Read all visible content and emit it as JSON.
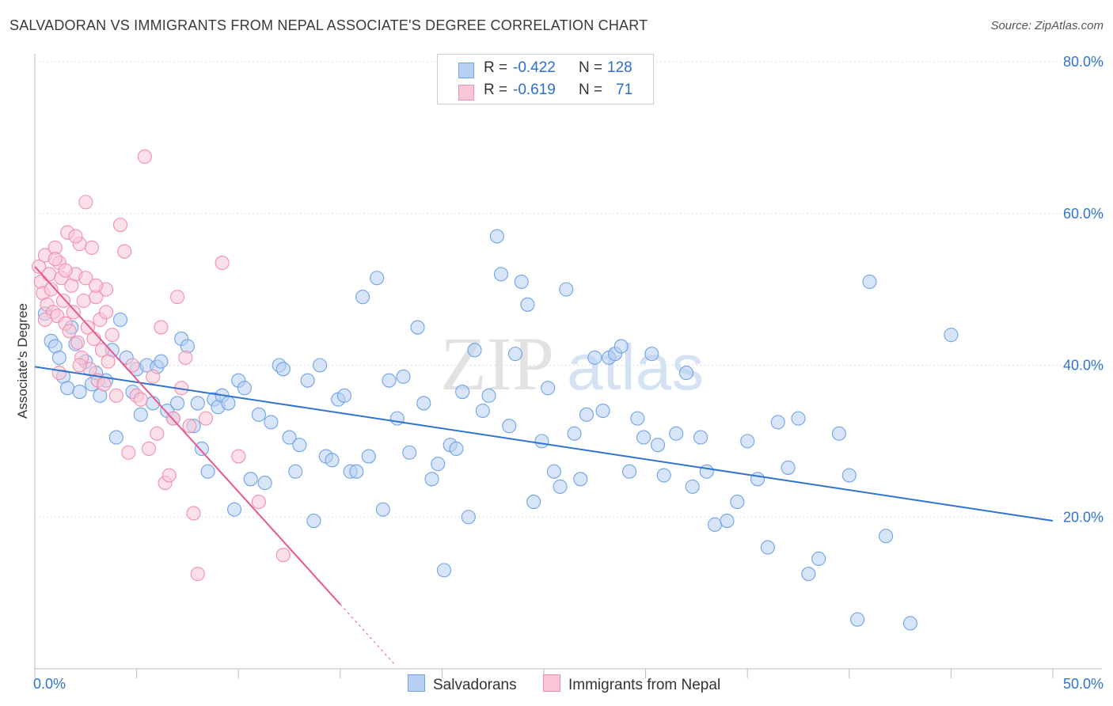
{
  "title": "SALVADORAN VS IMMIGRANTS FROM NEPAL ASSOCIATE'S DEGREE CORRELATION CHART",
  "source": "Source: ZipAtlas.com",
  "watermark": {
    "zip": "ZIP",
    "atlas": "atlas"
  },
  "legend": {
    "r_label": "R =",
    "n_label": "N =",
    "rows": [
      {
        "r": "-0.422",
        "n": "128",
        "color": "#6fa3e8",
        "fill": "#b8d0f3"
      },
      {
        "r": "-0.619",
        "n": "71",
        "color": "#f08fb0",
        "fill": "#f9c6d6"
      }
    ]
  },
  "bottom_legend": [
    "Salvadorans",
    "Immigrants from Nepal"
  ],
  "chart_data": {
    "type": "scatter",
    "title": "SALVADORAN VS IMMIGRANTS FROM NEPAL ASSOCIATE'S DEGREE CORRELATION CHART",
    "xlabel": "",
    "ylabel": "Associate's Degree",
    "xlim": [
      0,
      50
    ],
    "ylim": [
      0,
      80
    ],
    "x_tick_labels": [
      "0.0%",
      "50.0%"
    ],
    "y_tick_labels": [
      "20.0%",
      "40.0%",
      "60.0%",
      "80.0%"
    ],
    "y_ticks": [
      20,
      40,
      60,
      80
    ],
    "grid": true,
    "legend_position": "top-center",
    "series": [
      {
        "name": "Salvadorans",
        "color": "#2f74d0",
        "R": -0.422,
        "N": 128,
        "trend": {
          "x": [
            0,
            50
          ],
          "y": [
            39.8,
            19.5
          ]
        },
        "points": [
          [
            0.5,
            46.8
          ],
          [
            0.8,
            43.2
          ],
          [
            1.0,
            42.5
          ],
          [
            1.2,
            41.0
          ],
          [
            1.4,
            38.5
          ],
          [
            1.6,
            37.0
          ],
          [
            1.8,
            45.0
          ],
          [
            2.0,
            42.8
          ],
          [
            2.2,
            36.5
          ],
          [
            2.5,
            40.5
          ],
          [
            2.8,
            37.5
          ],
          [
            3.0,
            39.0
          ],
          [
            3.2,
            36.0
          ],
          [
            3.5,
            38.0
          ],
          [
            3.8,
            42.0
          ],
          [
            4.0,
            30.5
          ],
          [
            4.2,
            46.0
          ],
          [
            4.5,
            41.0
          ],
          [
            4.8,
            36.5
          ],
          [
            5.0,
            39.5
          ],
          [
            5.2,
            33.5
          ],
          [
            5.5,
            40.0
          ],
          [
            5.8,
            35.0
          ],
          [
            6.0,
            39.8
          ],
          [
            6.2,
            40.5
          ],
          [
            6.5,
            34.0
          ],
          [
            6.8,
            33.0
          ],
          [
            7.0,
            35.0
          ],
          [
            7.2,
            43.5
          ],
          [
            7.5,
            42.5
          ],
          [
            7.8,
            32.0
          ],
          [
            8.0,
            35.0
          ],
          [
            8.2,
            29.0
          ],
          [
            8.5,
            26.0
          ],
          [
            8.8,
            35.5
          ],
          [
            9.0,
            34.5
          ],
          [
            9.2,
            36.0
          ],
          [
            9.5,
            35.0
          ],
          [
            9.8,
            21.0
          ],
          [
            10.0,
            38.0
          ],
          [
            10.3,
            37.0
          ],
          [
            10.6,
            25.0
          ],
          [
            11.0,
            33.5
          ],
          [
            11.3,
            24.5
          ],
          [
            11.6,
            32.5
          ],
          [
            12.0,
            40.0
          ],
          [
            12.2,
            39.5
          ],
          [
            12.5,
            30.5
          ],
          [
            12.8,
            26.0
          ],
          [
            13.0,
            29.5
          ],
          [
            13.4,
            38.0
          ],
          [
            13.7,
            19.5
          ],
          [
            14.0,
            40.0
          ],
          [
            14.3,
            28.0
          ],
          [
            14.6,
            27.5
          ],
          [
            14.9,
            35.5
          ],
          [
            15.2,
            36.0
          ],
          [
            15.5,
            26.0
          ],
          [
            15.8,
            26.0
          ],
          [
            16.1,
            49.0
          ],
          [
            16.4,
            28.0
          ],
          [
            16.8,
            51.5
          ],
          [
            17.1,
            21.0
          ],
          [
            17.4,
            38.0
          ],
          [
            17.8,
            33.0
          ],
          [
            18.1,
            38.5
          ],
          [
            18.4,
            28.5
          ],
          [
            18.8,
            45.0
          ],
          [
            19.1,
            35.0
          ],
          [
            19.5,
            25.0
          ],
          [
            19.8,
            27.0
          ],
          [
            20.1,
            13.0
          ],
          [
            20.4,
            29.5
          ],
          [
            20.7,
            29.0
          ],
          [
            21.0,
            36.5
          ],
          [
            21.3,
            20.0
          ],
          [
            21.6,
            42.0
          ],
          [
            22.0,
            34.0
          ],
          [
            22.3,
            36.0
          ],
          [
            22.7,
            57.0
          ],
          [
            22.9,
            52.0
          ],
          [
            23.3,
            32.0
          ],
          [
            23.6,
            41.5
          ],
          [
            23.9,
            51.0
          ],
          [
            24.2,
            48.0
          ],
          [
            24.5,
            22.0
          ],
          [
            24.9,
            30.0
          ],
          [
            25.2,
            37.0
          ],
          [
            25.5,
            26.0
          ],
          [
            25.8,
            24.0
          ],
          [
            26.1,
            50.0
          ],
          [
            26.5,
            31.0
          ],
          [
            26.8,
            25.0
          ],
          [
            27.1,
            33.5
          ],
          [
            27.5,
            41.0
          ],
          [
            27.9,
            34.0
          ],
          [
            28.2,
            41.0
          ],
          [
            28.5,
            41.5
          ],
          [
            28.8,
            42.5
          ],
          [
            29.2,
            26.0
          ],
          [
            29.6,
            33.0
          ],
          [
            29.9,
            30.5
          ],
          [
            30.3,
            41.5
          ],
          [
            30.6,
            29.5
          ],
          [
            30.9,
            25.5
          ],
          [
            31.5,
            31.0
          ],
          [
            32.0,
            39.0
          ],
          [
            32.3,
            24.0
          ],
          [
            32.7,
            30.5
          ],
          [
            33.0,
            26.0
          ],
          [
            33.4,
            19.0
          ],
          [
            34.0,
            19.5
          ],
          [
            34.5,
            22.0
          ],
          [
            35.0,
            30.0
          ],
          [
            35.5,
            25.0
          ],
          [
            36.0,
            16.0
          ],
          [
            36.5,
            32.5
          ],
          [
            37.0,
            26.5
          ],
          [
            37.5,
            33.0
          ],
          [
            38.0,
            12.5
          ],
          [
            38.5,
            14.5
          ],
          [
            39.5,
            31.0
          ],
          [
            40.0,
            25.5
          ],
          [
            40.4,
            6.5
          ],
          [
            41.0,
            51.0
          ],
          [
            41.8,
            17.5
          ],
          [
            43.0,
            6.0
          ],
          [
            45.0,
            44.0
          ]
        ]
      },
      {
        "name": "Immigrants from Nepal",
        "color": "#e8578b",
        "R": -0.619,
        "N": 71,
        "trend": {
          "x": [
            0,
            15
          ],
          "y": [
            53.0,
            8.5
          ]
        },
        "trend_dashed": {
          "x": [
            15,
            17.7
          ],
          "y": [
            8.5,
            0.5
          ]
        },
        "points": [
          [
            0.2,
            53.0
          ],
          [
            0.3,
            51.0
          ],
          [
            0.4,
            49.5
          ],
          [
            0.5,
            54.5
          ],
          [
            0.6,
            48.0
          ],
          [
            0.7,
            52.0
          ],
          [
            0.8,
            50.0
          ],
          [
            0.9,
            47.0
          ],
          [
            1.0,
            55.5
          ],
          [
            1.1,
            46.5
          ],
          [
            1.2,
            53.5
          ],
          [
            1.3,
            51.5
          ],
          [
            1.4,
            48.5
          ],
          [
            1.5,
            45.5
          ],
          [
            1.6,
            57.5
          ],
          [
            1.7,
            44.5
          ],
          [
            1.8,
            50.5
          ],
          [
            1.9,
            47.0
          ],
          [
            2.0,
            52.0
          ],
          [
            2.1,
            43.0
          ],
          [
            2.2,
            56.0
          ],
          [
            2.3,
            41.0
          ],
          [
            2.4,
            48.5
          ],
          [
            2.5,
            51.5
          ],
          [
            2.6,
            45.0
          ],
          [
            2.7,
            39.5
          ],
          [
            2.8,
            55.5
          ],
          [
            2.9,
            43.5
          ],
          [
            3.0,
            49.0
          ],
          [
            3.1,
            38.0
          ],
          [
            3.2,
            46.0
          ],
          [
            3.3,
            42.0
          ],
          [
            3.4,
            37.5
          ],
          [
            3.5,
            50.0
          ],
          [
            3.6,
            40.5
          ],
          [
            3.8,
            44.0
          ],
          [
            4.0,
            36.0
          ],
          [
            4.2,
            58.5
          ],
          [
            4.4,
            55.0
          ],
          [
            4.6,
            28.5
          ],
          [
            4.8,
            40.0
          ],
          [
            5.0,
            36.0
          ],
          [
            5.2,
            35.5
          ],
          [
            5.4,
            67.5
          ],
          [
            5.6,
            29.0
          ],
          [
            5.8,
            38.5
          ],
          [
            6.0,
            31.0
          ],
          [
            6.2,
            45.0
          ],
          [
            6.4,
            24.5
          ],
          [
            6.6,
            25.5
          ],
          [
            6.8,
            33.0
          ],
          [
            7.0,
            49.0
          ],
          [
            7.2,
            37.0
          ],
          [
            7.4,
            41.0
          ],
          [
            7.6,
            32.0
          ],
          [
            7.8,
            20.5
          ],
          [
            8.0,
            12.5
          ],
          [
            8.4,
            33.0
          ],
          [
            9.2,
            53.5
          ],
          [
            10.0,
            28.0
          ],
          [
            11.0,
            22.0
          ],
          [
            12.2,
            15.0
          ],
          [
            1.0,
            54.0
          ],
          [
            2.0,
            57.0
          ],
          [
            3.0,
            50.5
          ],
          [
            0.5,
            46.0
          ],
          [
            1.5,
            52.5
          ],
          [
            2.5,
            61.5
          ],
          [
            1.2,
            39.0
          ],
          [
            2.2,
            40.0
          ],
          [
            3.5,
            47.0
          ]
        ]
      }
    ]
  }
}
